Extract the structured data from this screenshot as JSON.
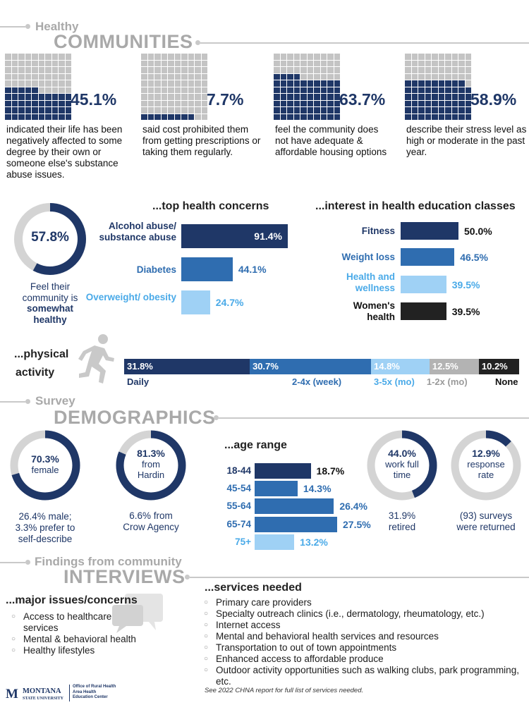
{
  "sections": {
    "communities": {
      "small": "Healthy",
      "big": "COMMUNITIES"
    },
    "demographics": {
      "small": "Survey",
      "big": "DEMOGRAPHICS"
    },
    "interviews": {
      "small": "Findings from community",
      "big": "INTERVIEWS"
    }
  },
  "stats": [
    {
      "value": "45.1%",
      "fill": 0.451,
      "text": "indicated their life has been negatively affected to some degree by their own or someone else's substance abuse issues."
    },
    {
      "value": "7.7%",
      "fill": 0.077,
      "text": "said cost prohibited them from getting prescriptions or taking them regularly."
    },
    {
      "value": "63.7%",
      "fill": 0.637,
      "text": "feel the community does not have adequate & affordable housing options"
    },
    {
      "value": "58.9%",
      "fill": 0.589,
      "text": "describe their stress level as high or moderate in the past year."
    }
  ],
  "community_health": {
    "value": "57.8%",
    "fill": 0.578,
    "line1": "Feel their",
    "line2": "community is",
    "line3": "somewhat",
    "line4": "healthy"
  },
  "chart_data": [
    {
      "type": "bar",
      "title": "...top health concerns",
      "categories": [
        "Alcohol abuse/ substance abuse",
        "Diabetes",
        "Overweight/ obesity"
      ],
      "values": [
        91.4,
        44.1,
        24.7
      ],
      "value_labels": [
        "91.4%",
        "44.1%",
        "24.7%"
      ],
      "colors": [
        "#1f3767",
        "#2f6db0",
        "#9fd1f5"
      ]
    },
    {
      "type": "bar",
      "title": "...interest in health education classes",
      "categories": [
        "Fitness",
        "Weight loss",
        "Health and wellness",
        "Women's health"
      ],
      "values": [
        50.0,
        46.5,
        39.5,
        39.5
      ],
      "value_labels": [
        "50.0%",
        "46.5%",
        "39.5%",
        "39.5%"
      ],
      "colors": [
        "#1f3767",
        "#2f6db0",
        "#9fd1f5",
        "#222222"
      ]
    },
    {
      "type": "bar",
      "title": "...physical activity",
      "categories": [
        "Daily",
        "2-4x (week)",
        "3-5x (mo)",
        "1-2x (mo)",
        "None"
      ],
      "values": [
        31.8,
        30.7,
        14.8,
        12.5,
        10.2
      ],
      "value_labels": [
        "31.8%",
        "30.7%",
        "14.8%",
        "12.5%",
        "10.2%"
      ],
      "colors": [
        "#1f3767",
        "#2f6db0",
        "#9fd1f5",
        "#b3b3b3",
        "#222222"
      ]
    },
    {
      "type": "bar",
      "title": "...age range",
      "categories": [
        "18-44",
        "45-54",
        "55-64",
        "65-74",
        "75+"
      ],
      "values": [
        18.7,
        14.3,
        26.4,
        27.5,
        13.2
      ],
      "value_labels": [
        "18.7%",
        "14.3%",
        "26.4%",
        "27.5%",
        "13.2%"
      ],
      "colors": [
        "#1f3767",
        "#2f6db0",
        "#2f6db0",
        "#2f6db0",
        "#9fd1f5"
      ]
    }
  ],
  "phys_title": {
    "line1": "...physical",
    "line2": "activity"
  },
  "demo_rings": [
    {
      "value": "70.3%",
      "fill": 0.703,
      "inner": [
        "female"
      ],
      "below": [
        "26.4% male;",
        "3.3% prefer to",
        "self-describe"
      ]
    },
    {
      "value": "81.3%",
      "fill": 0.813,
      "inner": [
        "from",
        "Hardin"
      ],
      "below": [
        "6.6% from",
        "Crow Agency"
      ]
    },
    {
      "value": "44.0%",
      "fill": 0.44,
      "inner": [
        "work full",
        "time"
      ],
      "below": [
        "31.9%",
        "retired"
      ]
    },
    {
      "value": "12.9%",
      "fill": 0.129,
      "inner": [
        "response",
        "rate"
      ],
      "below": [
        "(93) surveys",
        "were returned"
      ]
    }
  ],
  "issues": {
    "title": "...major issues/concerns",
    "items": [
      "Access to healthcare services",
      "Mental & behavioral health",
      "Healthy lifestyles"
    ]
  },
  "services": {
    "title": "...services needed",
    "items": [
      "Primary care providers",
      "Specialty outreach clinics (i.e., dermatology, rheumatology, etc.)",
      "Internet access",
      "Mental and behavioral health services and resources",
      "Transportation to out of town appointments",
      "Enhanced access to affordable produce",
      "Outdoor activity opportunities such as walking clubs, park programming, etc."
    ],
    "note": "See 2022 CHNA report for full list of services needed."
  },
  "footer": {
    "logo_letter": "M",
    "logo_line1": "MONTANA",
    "logo_line2": "STATE UNIVERSITY",
    "office_line1": "Office of Rural Health",
    "office_line2": "Area Health",
    "office_line3": "Education Center"
  },
  "colors": {
    "navy": "#1f3767",
    "blue": "#2f6db0",
    "light": "#9fd1f5",
    "gray": "#b3b3b3",
    "black": "#222222"
  }
}
